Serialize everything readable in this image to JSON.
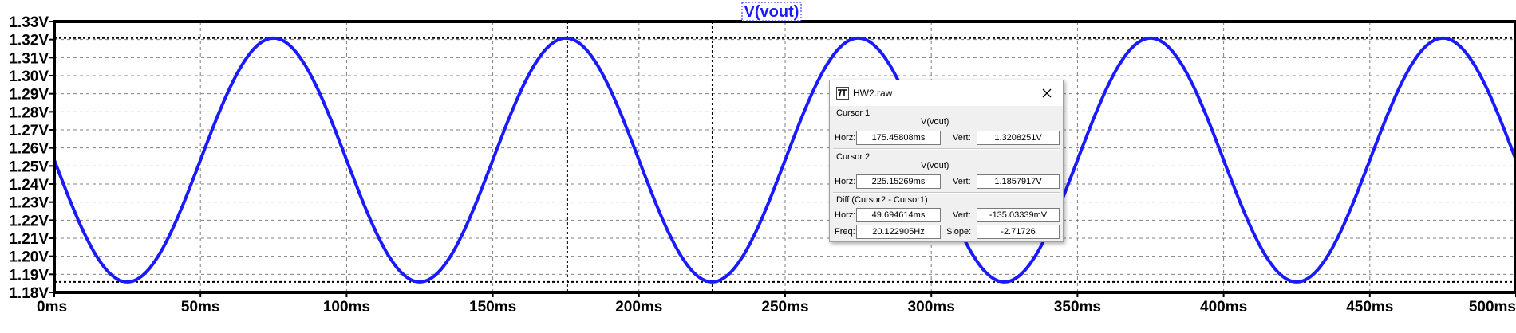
{
  "chart_data": {
    "type": "line",
    "title": "V(vout)",
    "xlabel": "",
    "ylabel": "",
    "x_ticks": [
      "0ms",
      "50ms",
      "100ms",
      "150ms",
      "200ms",
      "250ms",
      "300ms",
      "350ms",
      "400ms",
      "450ms",
      "500ms"
    ],
    "y_ticks": [
      "1.18V",
      "1.19V",
      "1.20V",
      "1.21V",
      "1.22V",
      "1.23V",
      "1.24V",
      "1.25V",
      "1.26V",
      "1.27V",
      "1.28V",
      "1.29V",
      "1.30V",
      "1.31V",
      "1.32V",
      "1.33V"
    ],
    "xlim": [
      0,
      500
    ],
    "ylim": [
      1.18,
      1.33
    ],
    "grid": true,
    "series": [
      {
        "name": "V(vout)",
        "color": "#1a1aff",
        "waveform": {
          "offset": 1.2533,
          "amplitude": 0.0675,
          "frequency_hz": 10,
          "phase_deg": 180
        }
      }
    ],
    "cursors": {
      "cursor1": {
        "x": 175.45808,
        "y": 1.3208251
      },
      "cursor2": {
        "x": 225.15269,
        "y": 1.1857917
      }
    }
  },
  "dialog": {
    "title": "HW2.raw",
    "cursor1_label": "Cursor 1",
    "cursor1_trace": "V(vout)",
    "cursor1_horz_label": "Horz:",
    "cursor1_horz": "175.45808ms",
    "cursor1_vert_label": "Vert:",
    "cursor1_vert": "1.3208251V",
    "cursor2_label": "Cursor 2",
    "cursor2_trace": "V(vout)",
    "cursor2_horz_label": "Horz:",
    "cursor2_horz": "225.15269ms",
    "cursor2_vert_label": "Vert:",
    "cursor2_vert": "1.1857917V",
    "diff_label": "Diff (Cursor2 - Cursor1)",
    "diff_horz_label": "Horz:",
    "diff_horz": "49.694614ms",
    "diff_vert_label": "Vert:",
    "diff_vert": "-135.03339mV",
    "freq_label": "Freq:",
    "freq": "20.122905Hz",
    "slope_label": "Slope:",
    "slope": "-2.71726"
  },
  "colors": {
    "trace": "#1a1aff",
    "grid": "#808080",
    "frame": "#000000",
    "background": "#ffffff"
  },
  "icons": {
    "app": "ltspice-waveform-icon",
    "close": "close-icon"
  }
}
